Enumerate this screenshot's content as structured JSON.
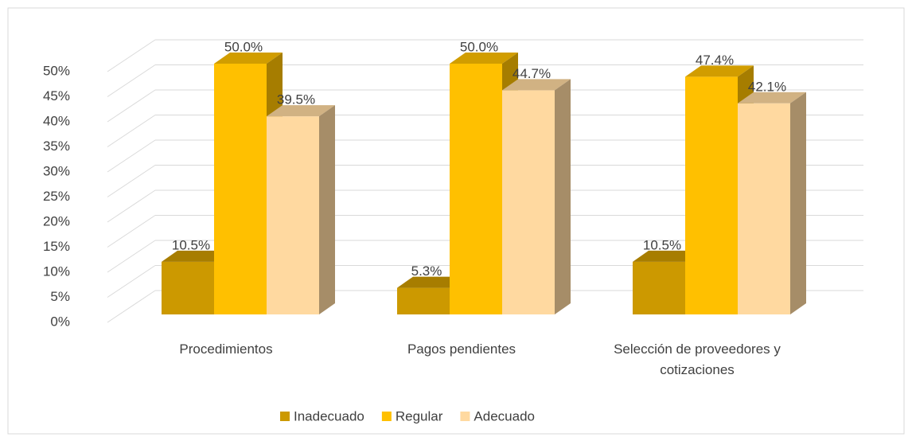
{
  "chart_data": {
    "type": "bar3d",
    "categories": [
      "Procedimientos",
      "Pagos pendientes",
      "Selección de proveedores y cotizaciones"
    ],
    "series": [
      {
        "name": "Inadecuado",
        "color": "#CC9900",
        "values": [
          10.5,
          5.3,
          10.5
        ],
        "value_labels": [
          "10.5%",
          "5.3%",
          "10.5%"
        ]
      },
      {
        "name": "Regular",
        "color": "#FFC000",
        "values": [
          50.0,
          50.0,
          47.4
        ],
        "value_labels": [
          "50.0%",
          "50.0%",
          "47.4%"
        ]
      },
      {
        "name": "Adecuado",
        "color": "#FFD9A0",
        "values": [
          39.5,
          44.7,
          42.1
        ],
        "value_labels": [
          "39.5%",
          "44.7%",
          "42.1%"
        ]
      }
    ],
    "ylim": [
      0,
      50
    ],
    "yticks": [
      {
        "value": 0,
        "label": "0%"
      },
      {
        "value": 5,
        "label": "5%"
      },
      {
        "value": 10,
        "label": "10%"
      },
      {
        "value": 15,
        "label": "15%"
      },
      {
        "value": 20,
        "label": "20%"
      },
      {
        "value": 25,
        "label": "25%"
      },
      {
        "value": 30,
        "label": "30%"
      },
      {
        "value": 35,
        "label": "35%"
      },
      {
        "value": 40,
        "label": "40%"
      },
      {
        "value": 45,
        "label": "45%"
      },
      {
        "value": 50,
        "label": "50%"
      }
    ],
    "grid": true,
    "legend": "bottom"
  }
}
